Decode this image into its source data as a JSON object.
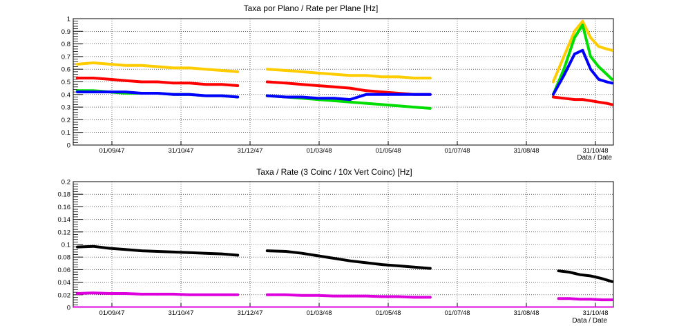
{
  "chart_data": [
    {
      "type": "scatter",
      "title": "Taxa por Plano / Rate per Plane [Hz]",
      "xlabel": "Data / Date",
      "ylabel": "",
      "ylim": [
        0,
        1
      ],
      "yticks": [
        "0",
        "0.1",
        "0.2",
        "0.3",
        "0.4",
        "0.5",
        "0.6",
        "0.7",
        "0.8",
        "0.9",
        "1"
      ],
      "xticks": [
        "01/09/47",
        "31/10/47",
        "31/12/47",
        "01/03/48",
        "01/05/48",
        "01/07/48",
        "31/08/48",
        "31/10/48"
      ],
      "grid": true,
      "colors": {
        "gold": "#ffcc00",
        "red": "#ff0000",
        "green": "#00dd00",
        "blue": "#0000ff"
      },
      "segments": [
        {
          "x": [
            0.0,
            0.03,
            0.06,
            0.09,
            0.12,
            0.15,
            0.18,
            0.21,
            0.24,
            0.27,
            0.3
          ],
          "series": [
            {
              "color": "gold",
              "values": [
                0.64,
                0.65,
                0.64,
                0.63,
                0.63,
                0.62,
                0.61,
                0.61,
                0.6,
                0.59,
                0.58
              ]
            },
            {
              "color": "red",
              "values": [
                0.53,
                0.53,
                0.52,
                0.51,
                0.5,
                0.5,
                0.49,
                0.49,
                0.48,
                0.48,
                0.47
              ]
            },
            {
              "color": "green",
              "values": [
                0.43,
                0.43,
                0.42,
                0.41,
                0.41,
                0.41,
                0.4,
                0.4,
                0.39,
                0.39,
                0.38
              ]
            },
            {
              "color": "blue",
              "values": [
                0.42,
                0.42,
                0.42,
                0.42,
                0.41,
                0.41,
                0.4,
                0.4,
                0.39,
                0.39,
                0.38
              ]
            }
          ]
        },
        {
          "x": [
            0.355,
            0.39,
            0.42,
            0.45,
            0.48,
            0.51,
            0.54,
            0.57,
            0.6,
            0.63,
            0.66
          ],
          "series": [
            {
              "color": "gold",
              "values": [
                0.6,
                0.59,
                0.58,
                0.57,
                0.56,
                0.55,
                0.55,
                0.54,
                0.54,
                0.53,
                0.53
              ]
            },
            {
              "color": "red",
              "values": [
                0.5,
                0.49,
                0.48,
                0.47,
                0.46,
                0.45,
                0.43,
                0.42,
                0.41,
                0.4,
                0.4
              ]
            },
            {
              "color": "green",
              "values": [
                0.39,
                0.38,
                0.37,
                0.36,
                0.35,
                0.34,
                0.33,
                0.32,
                0.31,
                0.3,
                0.29
              ]
            },
            {
              "color": "blue",
              "values": [
                0.39,
                0.38,
                0.38,
                0.37,
                0.37,
                0.36,
                0.4,
                0.4,
                0.4,
                0.4,
                0.4
              ]
            }
          ]
        },
        {
          "x": [
            0.89,
            0.91,
            0.93,
            0.945,
            0.96,
            0.975,
            0.99,
            1.0
          ],
          "series": [
            {
              "color": "gold",
              "values": [
                0.5,
                0.7,
                0.9,
                0.98,
                0.85,
                0.78,
                0.76,
                0.75
              ]
            },
            {
              "color": "green",
              "values": [
                0.4,
                0.6,
                0.85,
                0.95,
                0.7,
                0.62,
                0.56,
                0.52
              ]
            },
            {
              "color": "blue",
              "values": [
                0.4,
                0.55,
                0.72,
                0.75,
                0.6,
                0.52,
                0.5,
                0.49
              ]
            },
            {
              "color": "red",
              "values": [
                0.38,
                0.37,
                0.36,
                0.36,
                0.35,
                0.34,
                0.33,
                0.32
              ]
            }
          ]
        }
      ]
    },
    {
      "type": "scatter",
      "title": "Taxa / Rate (3 Coinc / 10x Vert Coinc) [Hz]",
      "xlabel": "Data / Date",
      "ylabel": "",
      "ylim": [
        0,
        0.2
      ],
      "yticks": [
        "0",
        "0.02",
        "0.04",
        "0.06",
        "0.08",
        "0.1",
        "0.12",
        "0.14",
        "0.16",
        "0.18",
        "0.2"
      ],
      "xticks": [
        "01/09/47",
        "31/10/47",
        "31/12/47",
        "01/03/48",
        "01/05/48",
        "01/07/48",
        "31/08/48",
        "31/10/48"
      ],
      "grid": true,
      "colors": {
        "black": "#000000",
        "magenta": "#dd00dd"
      },
      "segments": [
        {
          "x": [
            0.0,
            0.03,
            0.06,
            0.09,
            0.12,
            0.15,
            0.18,
            0.21,
            0.24,
            0.27,
            0.3
          ],
          "series": [
            {
              "color": "black",
              "values": [
                0.096,
                0.097,
                0.094,
                0.092,
                0.09,
                0.089,
                0.088,
                0.087,
                0.086,
                0.085,
                0.083
              ]
            },
            {
              "color": "magenta",
              "values": [
                0.022,
                0.023,
                0.022,
                0.022,
                0.021,
                0.021,
                0.021,
                0.02,
                0.02,
                0.02,
                0.02
              ]
            }
          ]
        },
        {
          "x": [
            0.355,
            0.39,
            0.42,
            0.45,
            0.48,
            0.51,
            0.54,
            0.57,
            0.6,
            0.63,
            0.66
          ],
          "series": [
            {
              "color": "black",
              "values": [
                0.09,
                0.089,
                0.086,
                0.082,
                0.078,
                0.074,
                0.071,
                0.068,
                0.066,
                0.064,
                0.062
              ]
            },
            {
              "color": "magenta",
              "values": [
                0.02,
                0.02,
                0.019,
                0.019,
                0.018,
                0.018,
                0.018,
                0.017,
                0.017,
                0.016,
                0.016
              ]
            }
          ]
        },
        {
          "x": [
            0.9,
            0.92,
            0.94,
            0.96,
            0.98,
            1.0
          ],
          "series": [
            {
              "color": "black",
              "values": [
                0.058,
                0.056,
                0.052,
                0.05,
                0.046,
                0.041
              ]
            },
            {
              "color": "magenta",
              "values": [
                0.014,
                0.014,
                0.013,
                0.013,
                0.012,
                0.012
              ]
            }
          ]
        }
      ]
    }
  ]
}
